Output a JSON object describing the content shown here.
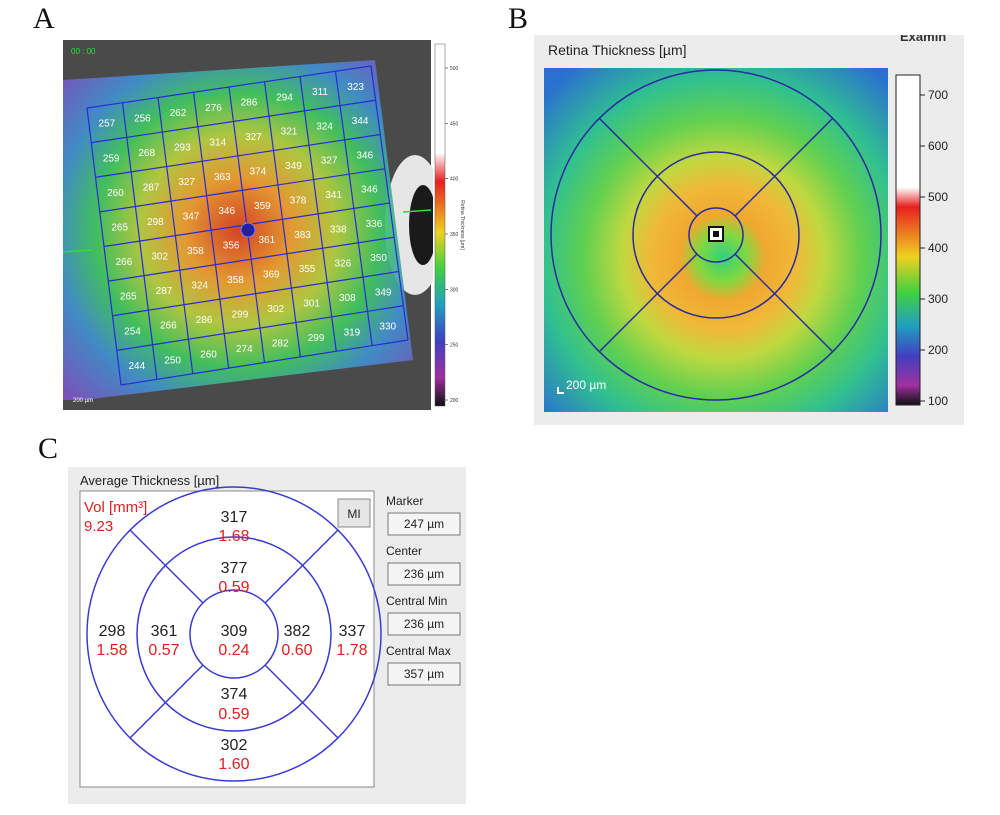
{
  "panels": {
    "a": "A",
    "b": "B",
    "c": "C"
  },
  "panel_a": {
    "corner_label": "00 : 00",
    "scale_label": "200 µm",
    "colorbar_title": "Retina Thickness [µm]",
    "colorbar_ticks": [
      "500",
      "450",
      "400",
      "350",
      "300",
      "250",
      "200"
    ],
    "grid": [
      [
        "257",
        "256",
        "262",
        "276",
        "286",
        "294",
        "311",
        "323"
      ],
      [
        "259",
        "268",
        "293",
        "314",
        "327",
        "321",
        "324",
        "344"
      ],
      [
        "260",
        "287",
        "327",
        "363",
        "374",
        "349",
        "327",
        "346"
      ],
      [
        "265",
        "298",
        "347",
        "346",
        "359",
        "378",
        "341",
        "346"
      ],
      [
        "266",
        "302",
        "358",
        "356",
        "361",
        "383",
        "338",
        "336"
      ],
      [
        "265",
        "287",
        "324",
        "358",
        "369",
        "355",
        "326",
        "350"
      ],
      [
        "254",
        "266",
        "286",
        "299",
        "302",
        "301",
        "308",
        "349"
      ],
      [
        "244",
        "250",
        "260",
        "274",
        "282",
        "299",
        "319",
        "330"
      ]
    ]
  },
  "panel_b": {
    "title": "Retina Thickness [µm]",
    "top_right_text": "Examin",
    "scale_label": "200 µm",
    "colorbar_ticks": [
      "700",
      "600",
      "500",
      "400",
      "300",
      "200",
      "100"
    ]
  },
  "panel_c": {
    "title": "Average Thickness [µm]",
    "vol_label": "Vol [mm³]",
    "vol_value": "9.23",
    "mi_button": "MI",
    "sectors": {
      "center": {
        "thickness": "309",
        "volume": "0.24"
      },
      "inner_top": {
        "thickness": "377",
        "volume": "0.59"
      },
      "inner_bottom": {
        "thickness": "374",
        "volume": "0.59"
      },
      "inner_left": {
        "thickness": "361",
        "volume": "0.57"
      },
      "inner_right": {
        "thickness": "382",
        "volume": "0.60"
      },
      "outer_top": {
        "thickness": "317",
        "volume": "1.68"
      },
      "outer_bottom": {
        "thickness": "302",
        "volume": "1.60"
      },
      "outer_left": {
        "thickness": "298",
        "volume": "1.58"
      },
      "outer_right": {
        "thickness": "337",
        "volume": "1.78"
      }
    },
    "fields": [
      {
        "label": "Marker",
        "value": "247 µm"
      },
      {
        "label": "Center",
        "value": "236 µm"
      },
      {
        "label": "Central Min",
        "value": "236 µm"
      },
      {
        "label": "Central Max",
        "value": "357 µm"
      }
    ]
  },
  "colors": {
    "grid_blue": "#2a2ad6",
    "vol_red": "#e02020",
    "ring_blue": "#3b3bd0"
  }
}
